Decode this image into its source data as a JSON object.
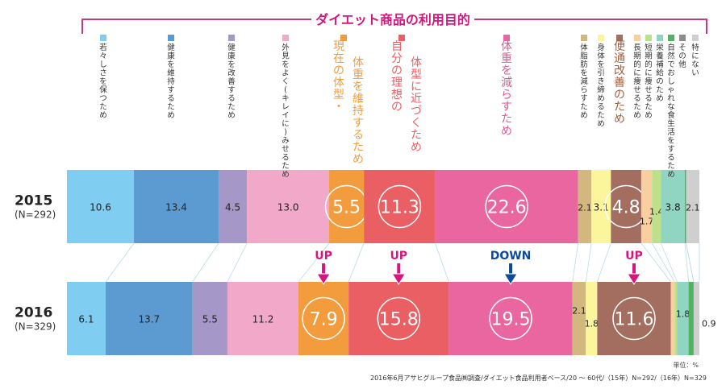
{
  "chart_data": {
    "type": "bar",
    "orientation": "horizontal-stacked-100",
    "title": "ダイエット商品の利用目的",
    "unit_label": "単位：%",
    "source": "2016年6月アサヒグループ食品㈱調査/ダイエット食品利用者ベース/20 ～ 60代/（15年）N=292/（16年）N=329",
    "categories": [
      {
        "key": "young",
        "label": "若々しさを保つため",
        "color": "#7fcdf1",
        "emphasis": false
      },
      {
        "key": "keep_health",
        "label": "健康を維持するため",
        "color": "#5b9bd1",
        "emphasis": false
      },
      {
        "key": "improve_health",
        "label": "健康を改善するため",
        "color": "#a598c8",
        "emphasis": false
      },
      {
        "key": "appearance",
        "label": "外見をよく(キレイに)みせるため",
        "color": "#f2a9c9",
        "emphasis": false
      },
      {
        "key": "maintain",
        "label_lines": [
          "現在の体型・",
          "体重を維持するため"
        ],
        "label": "現在の体型・体重を維持するため",
        "color": "#f39c3d",
        "emphasis": true
      },
      {
        "key": "ideal",
        "label_lines": [
          "自分の理想の",
          "体型に近づくため"
        ],
        "label": "自分の理想の体型に近づくため",
        "color": "#e95f64",
        "emphasis": true
      },
      {
        "key": "lose_weight",
        "label": "体重を減らすため",
        "color": "#e966a0",
        "emphasis": true
      },
      {
        "key": "lose_fat",
        "label": "体脂肪を減らすため",
        "color": "#d2b77f",
        "emphasis": false
      },
      {
        "key": "tone",
        "label": "身体を引き締めるため",
        "color": "#fbf59b",
        "emphasis": false
      },
      {
        "key": "bowel",
        "label": "便通改善のため",
        "color": "#a36d5f",
        "emphasis": true
      },
      {
        "key": "long_term",
        "label": "長期的に痩せるため",
        "color": "#f9cfa0",
        "emphasis": false
      },
      {
        "key": "short_term",
        "label": "短期的に痩せるため",
        "color": "#bfe08b",
        "emphasis": false
      },
      {
        "key": "nutrition",
        "label": "栄養補給のため",
        "color": "#90d4c2",
        "emphasis": false
      },
      {
        "key": "stylish",
        "label": "自然でおしゃれな食生活をするため",
        "color": "#52b25f",
        "emphasis": false
      },
      {
        "key": "other",
        "label": "その他",
        "color": "#8c8c8c",
        "emphasis": false
      },
      {
        "key": "none",
        "label": "特にない",
        "color": "#cfcfcf",
        "emphasis": false
      }
    ],
    "series": [
      {
        "name": "2015",
        "sublabel": "(N=292)",
        "values": [
          10.6,
          13.4,
          4.5,
          13.0,
          5.5,
          11.3,
          22.6,
          2.1,
          3.1,
          4.8,
          1.7,
          1.4,
          3.8,
          0.2,
          0.0,
          2.1
        ],
        "labels": [
          "10.6",
          "13.4",
          "4.5",
          "13.0",
          "5.5",
          "11.3",
          "22.6",
          "2.1",
          "3.1",
          "4.8",
          "1.7",
          "1.4",
          "3.8",
          "",
          "",
          "2.1"
        ]
      },
      {
        "name": "2016",
        "sublabel": "(N=329)",
        "values": [
          6.1,
          13.7,
          5.5,
          11.2,
          7.9,
          15.8,
          19.5,
          2.1,
          1.8,
          11.6,
          0.6,
          0.4,
          1.8,
          0.8,
          0.0,
          0.9
        ],
        "labels": [
          "6.1",
          "13.7",
          "5.5",
          "11.2",
          "7.9",
          "15.8",
          "19.5",
          "2.1",
          "1.8",
          "11.6",
          "",
          "",
          "1.8",
          "",
          "",
          "0.9"
        ]
      }
    ],
    "changes": [
      {
        "category": "maintain",
        "label": "UP",
        "direction": "up",
        "color": "#d6157f"
      },
      {
        "category": "ideal",
        "label": "UP",
        "direction": "up",
        "color": "#d6157f"
      },
      {
        "category": "lose_weight",
        "label": "DOWN",
        "direction": "down",
        "color": "#0d4a9a"
      },
      {
        "category": "bowel",
        "label": "UP",
        "direction": "up",
        "color": "#d6157f"
      }
    ],
    "xlim": [
      0,
      100
    ],
    "legend": "top (vertical labels above bars)"
  },
  "colors": {
    "accent": "#c2398a",
    "title": "#d6157f",
    "up": "#d6157f",
    "down": "#0d4a9a",
    "label_text": "#222222"
  }
}
